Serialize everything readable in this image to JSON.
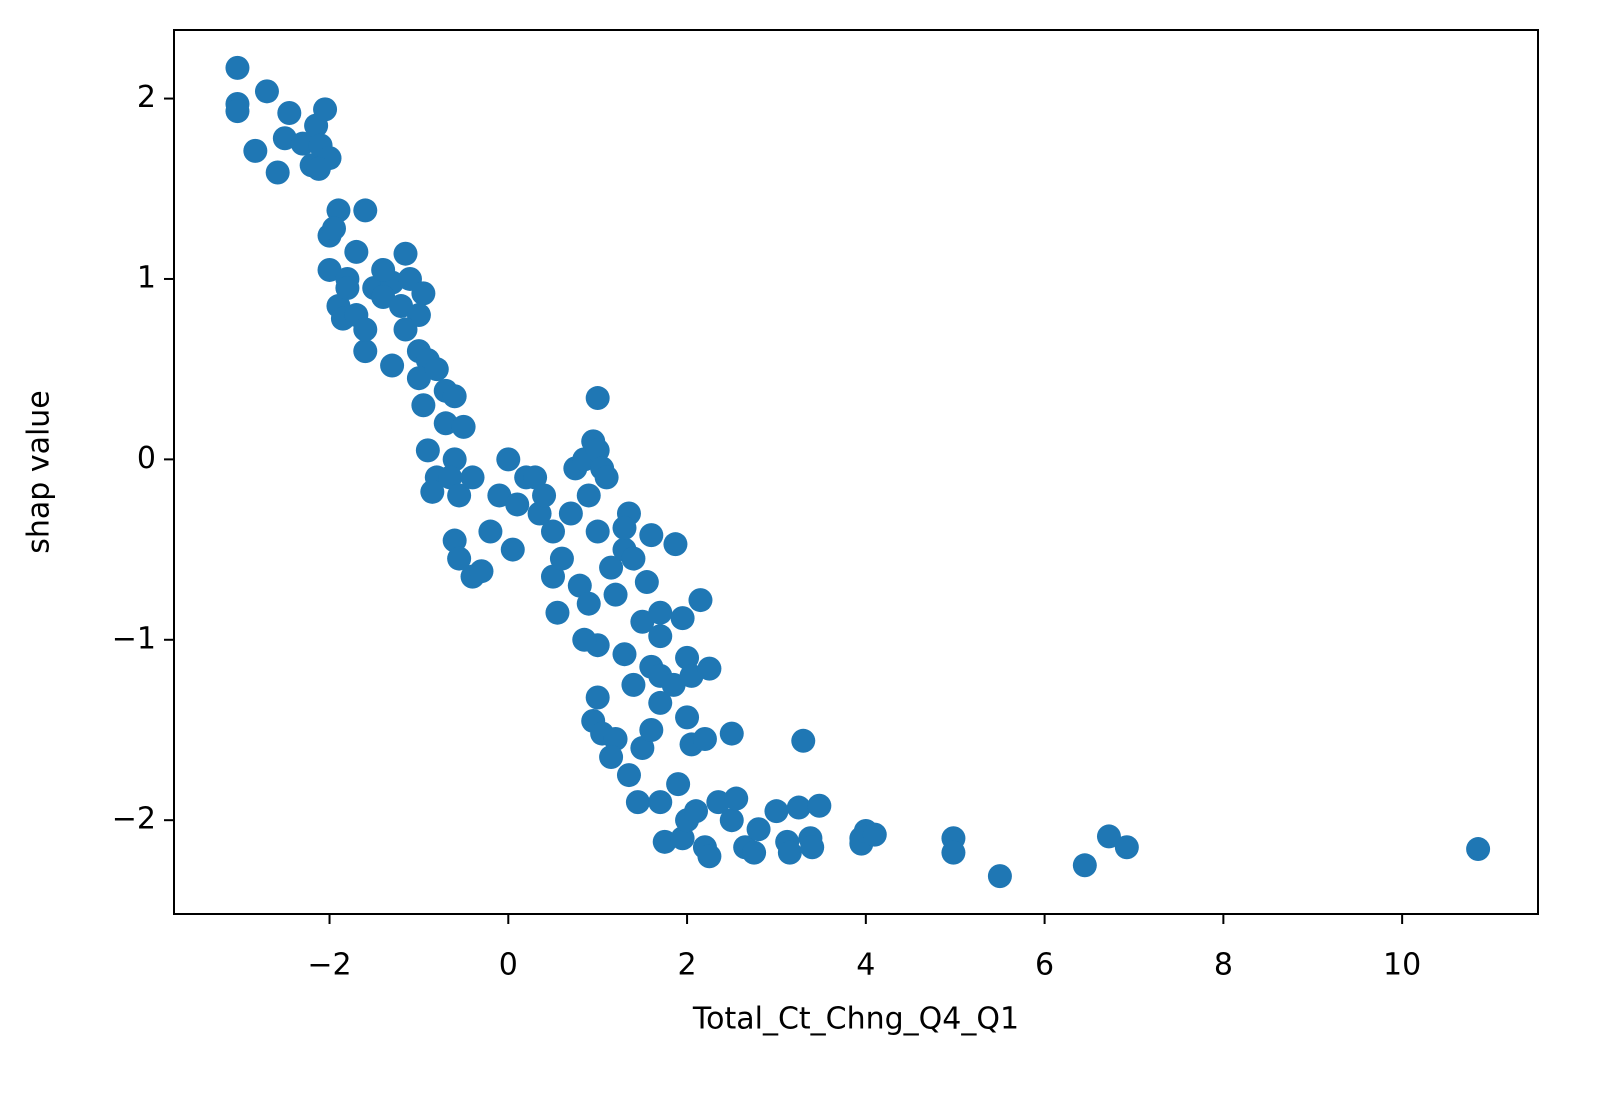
{
  "chart_data": {
    "type": "scatter",
    "x_label": "Total_Ct_Chng_Q4_Q1",
    "y_label": "shap value",
    "color": "#1f77b4",
    "xlim": [
      -3.74,
      11.52
    ],
    "ylim": [
      -2.52,
      2.38
    ],
    "xticks": [
      {
        "value": -2,
        "label": "−2"
      },
      0,
      2,
      4,
      6,
      8,
      10
    ],
    "yticks": [
      {
        "value": -2,
        "label": "−2"
      },
      {
        "value": -1,
        "label": "−1"
      },
      0,
      1,
      2
    ],
    "x": [
      -3.03,
      -3.03,
      -3.03,
      -2.7,
      -2.83,
      -2.58,
      -2.45,
      -2.5,
      -2.3,
      -2.2,
      -2.15,
      -2.05,
      -2.1,
      -2.0,
      -2.12,
      -1.9,
      -1.6,
      -2.0,
      -1.95,
      -1.7,
      -1.15,
      -2.0,
      -1.8,
      -1.5,
      -1.3,
      -1.1,
      -0.95,
      -1.9,
      -1.85,
      -1.7,
      -1.6,
      -1.4,
      -1.2,
      -1.0,
      -1.3,
      -1.0,
      -0.9,
      -1.15,
      -1.6,
      -1.8,
      -1.4,
      -1.0,
      -0.8,
      -0.95,
      -0.7,
      -0.6,
      -0.9,
      -0.8,
      -0.85,
      -0.7,
      -0.5,
      -0.6,
      -0.65,
      -0.55,
      -0.4,
      -0.6,
      -0.55,
      -0.4,
      -0.3,
      -0.2,
      -0.1,
      0.0,
      0.1,
      0.05,
      0.2,
      0.3,
      0.35,
      0.4,
      0.5,
      0.5,
      0.55,
      0.6,
      0.7,
      0.75,
      0.8,
      0.85,
      0.9,
      0.95,
      1.0,
      1.0,
      1.05,
      1.1,
      1.0,
      0.9,
      1.0,
      0.85,
      1.15,
      1.2,
      1.3,
      1.35,
      1.3,
      1.4,
      1.5,
      1.55,
      1.6,
      1.7,
      1.7,
      1.87,
      1.95,
      2.15,
      1.6,
      1.7,
      1.85,
      2.0,
      2.05,
      2.25,
      1.4,
      1.3,
      1.0,
      0.95,
      1.05,
      1.2,
      1.15,
      1.35,
      1.45,
      1.5,
      1.6,
      1.7,
      2.0,
      2.05,
      2.2,
      2.5,
      1.9,
      1.7,
      1.75,
      1.95,
      2.0,
      2.1,
      2.2,
      2.25,
      2.35,
      2.5,
      2.55,
      2.65,
      2.75,
      2.8,
      3.0,
      3.12,
      3.15,
      3.25,
      3.3,
      3.38,
      3.4,
      3.48,
      3.95,
      3.95,
      4.0,
      4.1,
      4.98,
      4.98,
      5.5,
      6.45,
      6.72,
      6.92,
      10.85
    ],
    "values": [
      2.17,
      1.97,
      1.93,
      2.04,
      1.71,
      1.59,
      1.92,
      1.78,
      1.75,
      1.63,
      1.85,
      1.94,
      1.74,
      1.67,
      1.61,
      1.38,
      1.38,
      1.24,
      1.28,
      1.15,
      1.14,
      1.05,
      1.0,
      0.95,
      0.98,
      1.0,
      0.92,
      0.85,
      0.78,
      0.8,
      0.6,
      0.9,
      0.85,
      0.8,
      0.52,
      0.6,
      0.55,
      0.72,
      0.72,
      0.95,
      1.05,
      0.45,
      0.5,
      0.3,
      0.38,
      0.35,
      0.05,
      -0.1,
      -0.18,
      0.2,
      0.18,
      0.0,
      -0.1,
      -0.2,
      -0.1,
      -0.45,
      -0.55,
      -0.65,
      -0.62,
      -0.4,
      -0.2,
      0.0,
      -0.25,
      -0.5,
      -0.1,
      -0.1,
      -0.3,
      -0.2,
      -0.4,
      -0.65,
      -0.85,
      -0.55,
      -0.3,
      -0.05,
      -0.7,
      0.0,
      -0.2,
      0.1,
      0.34,
      0.05,
      -0.05,
      -0.1,
      -0.4,
      -0.8,
      -1.03,
      -1.0,
      -0.6,
      -0.75,
      -0.5,
      -0.3,
      -0.38,
      -0.55,
      -0.9,
      -0.68,
      -0.42,
      -0.85,
      -0.98,
      -0.47,
      -0.88,
      -0.78,
      -1.15,
      -1.2,
      -1.25,
      -1.1,
      -1.2,
      -1.16,
      -1.25,
      -1.08,
      -1.32,
      -1.45,
      -1.52,
      -1.55,
      -1.65,
      -1.75,
      -1.9,
      -1.6,
      -1.5,
      -1.35,
      -1.43,
      -1.58,
      -1.55,
      -1.52,
      -1.8,
      -1.9,
      -2.12,
      -2.1,
      -2.0,
      -1.95,
      -2.15,
      -2.2,
      -1.9,
      -2.0,
      -1.88,
      -2.15,
      -2.18,
      -2.05,
      -1.95,
      -2.12,
      -2.18,
      -1.93,
      -1.56,
      -2.1,
      -2.15,
      -1.92,
      -2.1,
      -2.13,
      -2.06,
      -2.08,
      -2.1,
      -2.18,
      -2.31,
      -2.25,
      -2.09,
      -2.15,
      -2.16
    ]
  }
}
